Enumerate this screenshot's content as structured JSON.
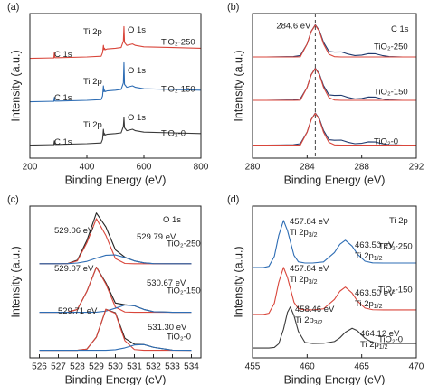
{
  "chart_data": [
    {
      "type": "line",
      "panel_label": "(a)",
      "xlabel": "Binding Energy (eV)",
      "ylabel": "Intensity (a.u.)",
      "xlim": [
        200,
        800
      ],
      "xticks": [
        200,
        400,
        600,
        800
      ],
      "ylim": [
        0,
        100
      ],
      "x": [
        200,
        270,
        284,
        286,
        288,
        300,
        400,
        450,
        455,
        458,
        460,
        462,
        464,
        470,
        500,
        520,
        528,
        530,
        532,
        540,
        560,
        570,
        600,
        700,
        800
      ],
      "series": [
        {
          "name": "TiO₂-250",
          "color": "#d9463b",
          "values": [
            69,
            69.3,
            69.3,
            73,
            69.5,
            69.5,
            70,
            70.5,
            73,
            78,
            75,
            76,
            75,
            75.5,
            76,
            76.5,
            81,
            91,
            80,
            78,
            79,
            78,
            77,
            76.5,
            76
          ]
        },
        {
          "name": "TiO₂-150",
          "color": "#2e6db4",
          "values": [
            39,
            39.3,
            39.3,
            42,
            39.5,
            39.5,
            40,
            40.5,
            43,
            50,
            46,
            47,
            46,
            46.5,
            47,
            47.5,
            52,
            66,
            51,
            49,
            50,
            49,
            48,
            47.5,
            47
          ]
        },
        {
          "name": "TiO₂-0",
          "color": "#3a3a3a",
          "values": [
            9,
            9.3,
            9.3,
            12,
            9.5,
            9.5,
            10,
            10.5,
            13,
            20,
            16,
            17,
            16,
            16.5,
            17,
            17.5,
            22,
            28,
            21,
            19,
            20,
            19,
            18,
            17.5,
            17
          ]
        }
      ],
      "annotations": [
        {
          "text": "C 1s"
        },
        {
          "text": "Ti 2p"
        },
        {
          "text": "O 1s"
        },
        {
          "text": "C 1s"
        },
        {
          "text": "Ti 2p"
        },
        {
          "text": "O 1s"
        },
        {
          "text": "C 1s"
        },
        {
          "text": "Ti 2p"
        },
        {
          "text": "O 1s"
        }
      ]
    },
    {
      "type": "line",
      "panel_label": "(b)",
      "xlabel": "Binding Energy (eV)",
      "ylabel": "Intensity (a.u.)",
      "xlim": [
        280,
        292
      ],
      "xticks": [
        280,
        284,
        288,
        292
      ],
      "ylim": [
        0,
        100
      ],
      "reference_line": {
        "value": 284.6,
        "label": "284.6 eV"
      },
      "x": [
        280,
        281,
        282,
        283,
        283.5,
        284,
        284.3,
        284.6,
        284.9,
        285.2,
        285.6,
        286,
        286.5,
        287,
        287.5,
        288,
        288.5,
        289,
        289.5,
        290,
        291,
        292
      ],
      "series": [
        {
          "name": "TiO₂-250",
          "color": "#1f3a6e",
          "values": [
            70,
            70,
            70.1,
            70.3,
            71,
            79,
            87.8,
            92.2,
            88.2,
            80.2,
            73.8,
            73.4,
            73.5,
            72,
            71,
            71.3,
            72.3,
            72.2,
            71,
            70.3,
            70,
            70
          ]
        },
        {
          "color": "#d9463b",
          "values": [
            70,
            70,
            70,
            70,
            70.1,
            79,
            87.6,
            92,
            87.6,
            79,
            71.9,
            70.2,
            70,
            70,
            70,
            70,
            70,
            70,
            70,
            70,
            70,
            70
          ]
        },
        {
          "name": "TiO₂-150",
          "color": "#1f3a6e",
          "values": [
            40,
            40,
            40.1,
            40.3,
            41,
            49,
            57.8,
            62.2,
            58.2,
            50.2,
            43.8,
            43.4,
            43.5,
            42,
            41,
            41.3,
            42.3,
            42.2,
            41,
            40.3,
            40,
            40
          ]
        },
        {
          "color": "#d9463b",
          "values": [
            40,
            40,
            40,
            40,
            40.1,
            49,
            57.6,
            62,
            57.6,
            49,
            41.9,
            40.2,
            40,
            40,
            40,
            40,
            40,
            40,
            40,
            40,
            40,
            40
          ]
        },
        {
          "name": "TiO₂-0",
          "color": "#1f3a6e",
          "values": [
            9,
            9,
            9.1,
            9.3,
            10,
            18,
            26.8,
            31.2,
            27.2,
            19.2,
            12.8,
            12.4,
            12.5,
            11,
            10,
            10.3,
            11.3,
            11.2,
            10,
            9.3,
            9,
            9
          ]
        },
        {
          "color": "#d9463b",
          "values": [
            9,
            9,
            9,
            9,
            9.1,
            18,
            26.6,
            31,
            26.6,
            18,
            10.9,
            9.2,
            9,
            9,
            9,
            9,
            9,
            9,
            9,
            9,
            9,
            9
          ]
        }
      ],
      "annotations": [
        {
          "text": "C 1s"
        }
      ]
    },
    {
      "type": "line",
      "panel_label": "(c)",
      "xlabel": "Binding Energy (eV)",
      "ylabel": "Intensity (a.u.)",
      "xlim": [
        525.5,
        534.5
      ],
      "xticks": [
        526,
        527,
        528,
        529,
        530,
        531,
        532,
        533,
        534
      ],
      "ylim": [
        0,
        100
      ],
      "x": [
        526,
        527,
        527.5,
        528,
        528.5,
        529,
        529.5,
        530,
        530.5,
        531,
        531.5,
        532,
        533,
        534
      ],
      "series": [
        {
          "name": "TiO₂-250",
          "color": "#222222",
          "values": [
            62,
            62,
            62.2,
            64.4,
            77.4,
            95.4,
            86.2,
            71.2,
            66.3,
            63.9,
            62.6,
            62.1,
            62,
            62
          ]
        },
        {
          "color": "#d9463b",
          "values": [
            62,
            62,
            62.1,
            63.9,
            75.8,
            91.7,
            80.6,
            65.4,
            62.2,
            62,
            62,
            62,
            62,
            62
          ]
        },
        {
          "color": "#2e6db4",
          "values": [
            62,
            62,
            62.1,
            62.5,
            63.6,
            65.7,
            67.6,
            67.8,
            66.1,
            63.9,
            62.6,
            62.1,
            62,
            62
          ]
        },
        {
          "name": "TiO₂-150",
          "color": "#222222",
          "values": [
            30,
            30,
            30.1,
            31.9,
            43.8,
            59.8,
            49.4,
            36.1,
            35,
            34.3,
            31.9,
            30.4,
            30,
            30
          ]
        },
        {
          "color": "#d9463b",
          "values": [
            30,
            30,
            30.1,
            31.9,
            43.8,
            59.7,
            48.6,
            33.4,
            30.2,
            30,
            30,
            30,
            30,
            30
          ]
        },
        {
          "color": "#2e6db4",
          "values": [
            30,
            30,
            30,
            30,
            30,
            30.1,
            30.8,
            32.7,
            34.8,
            34.3,
            31.9,
            30.4,
            30,
            30
          ]
        },
        {
          "name": "TiO₂-0",
          "color": "#222222",
          "values": [
            5,
            5,
            5,
            5,
            5.8,
            13.7,
            32,
            29.7,
            12.9,
            9,
            8.8,
            7,
            5.1,
            5
          ]
        },
        {
          "color": "#d9463b",
          "values": [
            5,
            5,
            5,
            5,
            5.8,
            13.7,
            32,
            29.3,
            11.3,
            5.5,
            5,
            5,
            5,
            5
          ]
        },
        {
          "color": "#2e6db4",
          "values": [
            5,
            5,
            5,
            5,
            5,
            5,
            5,
            5.4,
            6.6,
            8.5,
            8.8,
            7,
            5.1,
            5
          ]
        }
      ],
      "annotations": [
        {
          "text": "O 1s"
        },
        {
          "text": "529.06 eV"
        },
        {
          "text": "529.79 eV"
        },
        {
          "text": "529.07 eV"
        },
        {
          "text": "530.67 eV"
        },
        {
          "text": "529.71 eV"
        },
        {
          "text": "531.30 eV"
        }
      ]
    },
    {
      "type": "line",
      "panel_label": "(d)",
      "xlabel": "Binding Energy (eV)",
      "ylabel": "Intensity (a.u.)",
      "xlim": [
        455,
        470
      ],
      "xticks": [
        455,
        460,
        465,
        470
      ],
      "ylim": [
        0,
        100
      ],
      "x": [
        455,
        456,
        456.5,
        457,
        457.4,
        457.84,
        458.2,
        458.46,
        458.8,
        459.2,
        459.8,
        460.5,
        461.5,
        462.5,
        463,
        463.5,
        464.12,
        464.6,
        465.3,
        466,
        467,
        468,
        470
      ],
      "series": [
        {
          "name": "TiO₂-250",
          "color": "#2e6db4",
          "values": [
            59.5,
            59.5,
            60.3,
            66.9,
            80.6,
            90.5,
            83.9,
            76.8,
            67.5,
            63.3,
            62.5,
            62.5,
            63.2,
            69.4,
            74.8,
            77.5,
            73.6,
            68.4,
            63.7,
            62.6,
            62.5,
            62.5,
            62.5
          ]
        },
        {
          "name": "TiO₂-150",
          "color": "#d9463b",
          "values": [
            28.6,
            28.6,
            29.4,
            36,
            49.7,
            59.6,
            53,
            45.9,
            36.6,
            32.4,
            31.6,
            31.6,
            32.3,
            38.5,
            43.9,
            46.6,
            42.7,
            37.5,
            32.8,
            31.7,
            31.6,
            31.6,
            31.6
          ]
        },
        {
          "name": "TiO₂-0",
          "color": "#3a3a3a",
          "values": [
            6.5,
            6.5,
            6.5,
            6.9,
            9.3,
            18.9,
            30,
            33.5,
            27.8,
            17.4,
            10.2,
            9.5,
            9.6,
            10.8,
            13.2,
            16.9,
            19.5,
            17.9,
            12.9,
            10.1,
            9.5,
            9.5,
            9.5
          ]
        }
      ],
      "annotations": [
        {
          "text": "Ti 2p"
        },
        {
          "text": "457.84 eV"
        },
        {
          "text": "Ti 2p",
          "sub": "3/2"
        },
        {
          "text": "463.50 eV"
        },
        {
          "text": "Ti 2p",
          "sub": "1/2"
        },
        {
          "text": "457.84 eV"
        },
        {
          "text": "Ti 2p",
          "sub": "3/2"
        },
        {
          "text": "463.50 eV"
        },
        {
          "text": "Ti 2p",
          "sub": "1/2"
        },
        {
          "text": "458.46 eV"
        },
        {
          "text": "Ti 2p",
          "sub": "3/2"
        },
        {
          "text": "464.12 eV"
        },
        {
          "text": "Ti 2p",
          "sub": "1/2"
        }
      ]
    }
  ]
}
